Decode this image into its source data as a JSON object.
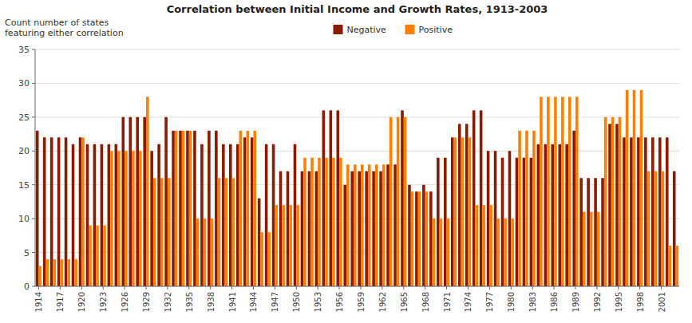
{
  "chart_data": {
    "type": "bar",
    "title": "Correlation between Initial Income and Growth Rates, 1913-2003",
    "ylabel": [
      "Count number of states",
      "featuring either correlation"
    ],
    "categories": [
      1914,
      null,
      null,
      1917,
      null,
      null,
      1920,
      null,
      null,
      1923,
      null,
      null,
      1926,
      null,
      null,
      1929,
      null,
      null,
      1932,
      null,
      null,
      1935,
      null,
      null,
      1938,
      null,
      null,
      1941,
      null,
      null,
      1944,
      null,
      null,
      1947,
      null,
      null,
      1950,
      null,
      null,
      1953,
      null,
      null,
      1956,
      null,
      null,
      1959,
      null,
      null,
      1962,
      null,
      null,
      1965,
      null,
      null,
      1968,
      null,
      null,
      1971,
      null,
      null,
      1974,
      null,
      null,
      1977,
      null,
      null,
      1980,
      null,
      null,
      1983,
      null,
      null,
      1986,
      null,
      null,
      1989,
      null,
      null,
      1992,
      null,
      null,
      1995,
      null,
      null,
      1998,
      null,
      null,
      2001,
      null,
      null
    ],
    "series": [
      {
        "name": "Negative",
        "color": "#8B1A00",
        "values": [
          23,
          22,
          22,
          22,
          22,
          21,
          22,
          21,
          21,
          21,
          21,
          21,
          25,
          25,
          25,
          25,
          20,
          21,
          25,
          23,
          23,
          23,
          23,
          21,
          23,
          23,
          21,
          21,
          21,
          22,
          22,
          13,
          21,
          21,
          17,
          17,
          21,
          17,
          17,
          17,
          26,
          26,
          26,
          15,
          17,
          17,
          17,
          17,
          17,
          18,
          18,
          26,
          15,
          14,
          15,
          14,
          19,
          19,
          22,
          24,
          24,
          26,
          26,
          20,
          20,
          19,
          20,
          19,
          19,
          19,
          21,
          21,
          21,
          21,
          21,
          23,
          16,
          16,
          16,
          16,
          24,
          24,
          22,
          22,
          22,
          22,
          22,
          22,
          22,
          17
        ]
      },
      {
        "name": "Positive",
        "color": "#FF8000",
        "values": [
          3,
          4,
          4,
          4,
          4,
          4,
          22,
          9,
          9,
          9,
          20,
          20,
          20,
          20,
          20,
          28,
          16,
          16,
          16,
          23,
          23,
          23,
          10,
          10,
          10,
          16,
          16,
          16,
          23,
          23,
          23,
          8,
          8,
          12,
          12,
          12,
          12,
          19,
          19,
          19,
          19,
          19,
          19,
          18,
          18,
          18,
          18,
          18,
          18,
          25,
          25,
          25,
          14,
          14,
          14,
          10,
          10,
          10,
          22,
          22,
          22,
          12,
          12,
          12,
          10,
          10,
          10,
          23,
          23,
          23,
          28,
          28,
          28,
          28,
          28,
          28,
          11,
          11,
          11,
          25,
          25,
          25,
          29,
          29,
          29,
          17,
          17,
          17,
          6,
          6
        ]
      }
    ],
    "ylim": [
      0,
      35
    ],
    "yticks": [
      0,
      5,
      10,
      15,
      20,
      25,
      30,
      35
    ],
    "grid": true,
    "legend": "top"
  }
}
